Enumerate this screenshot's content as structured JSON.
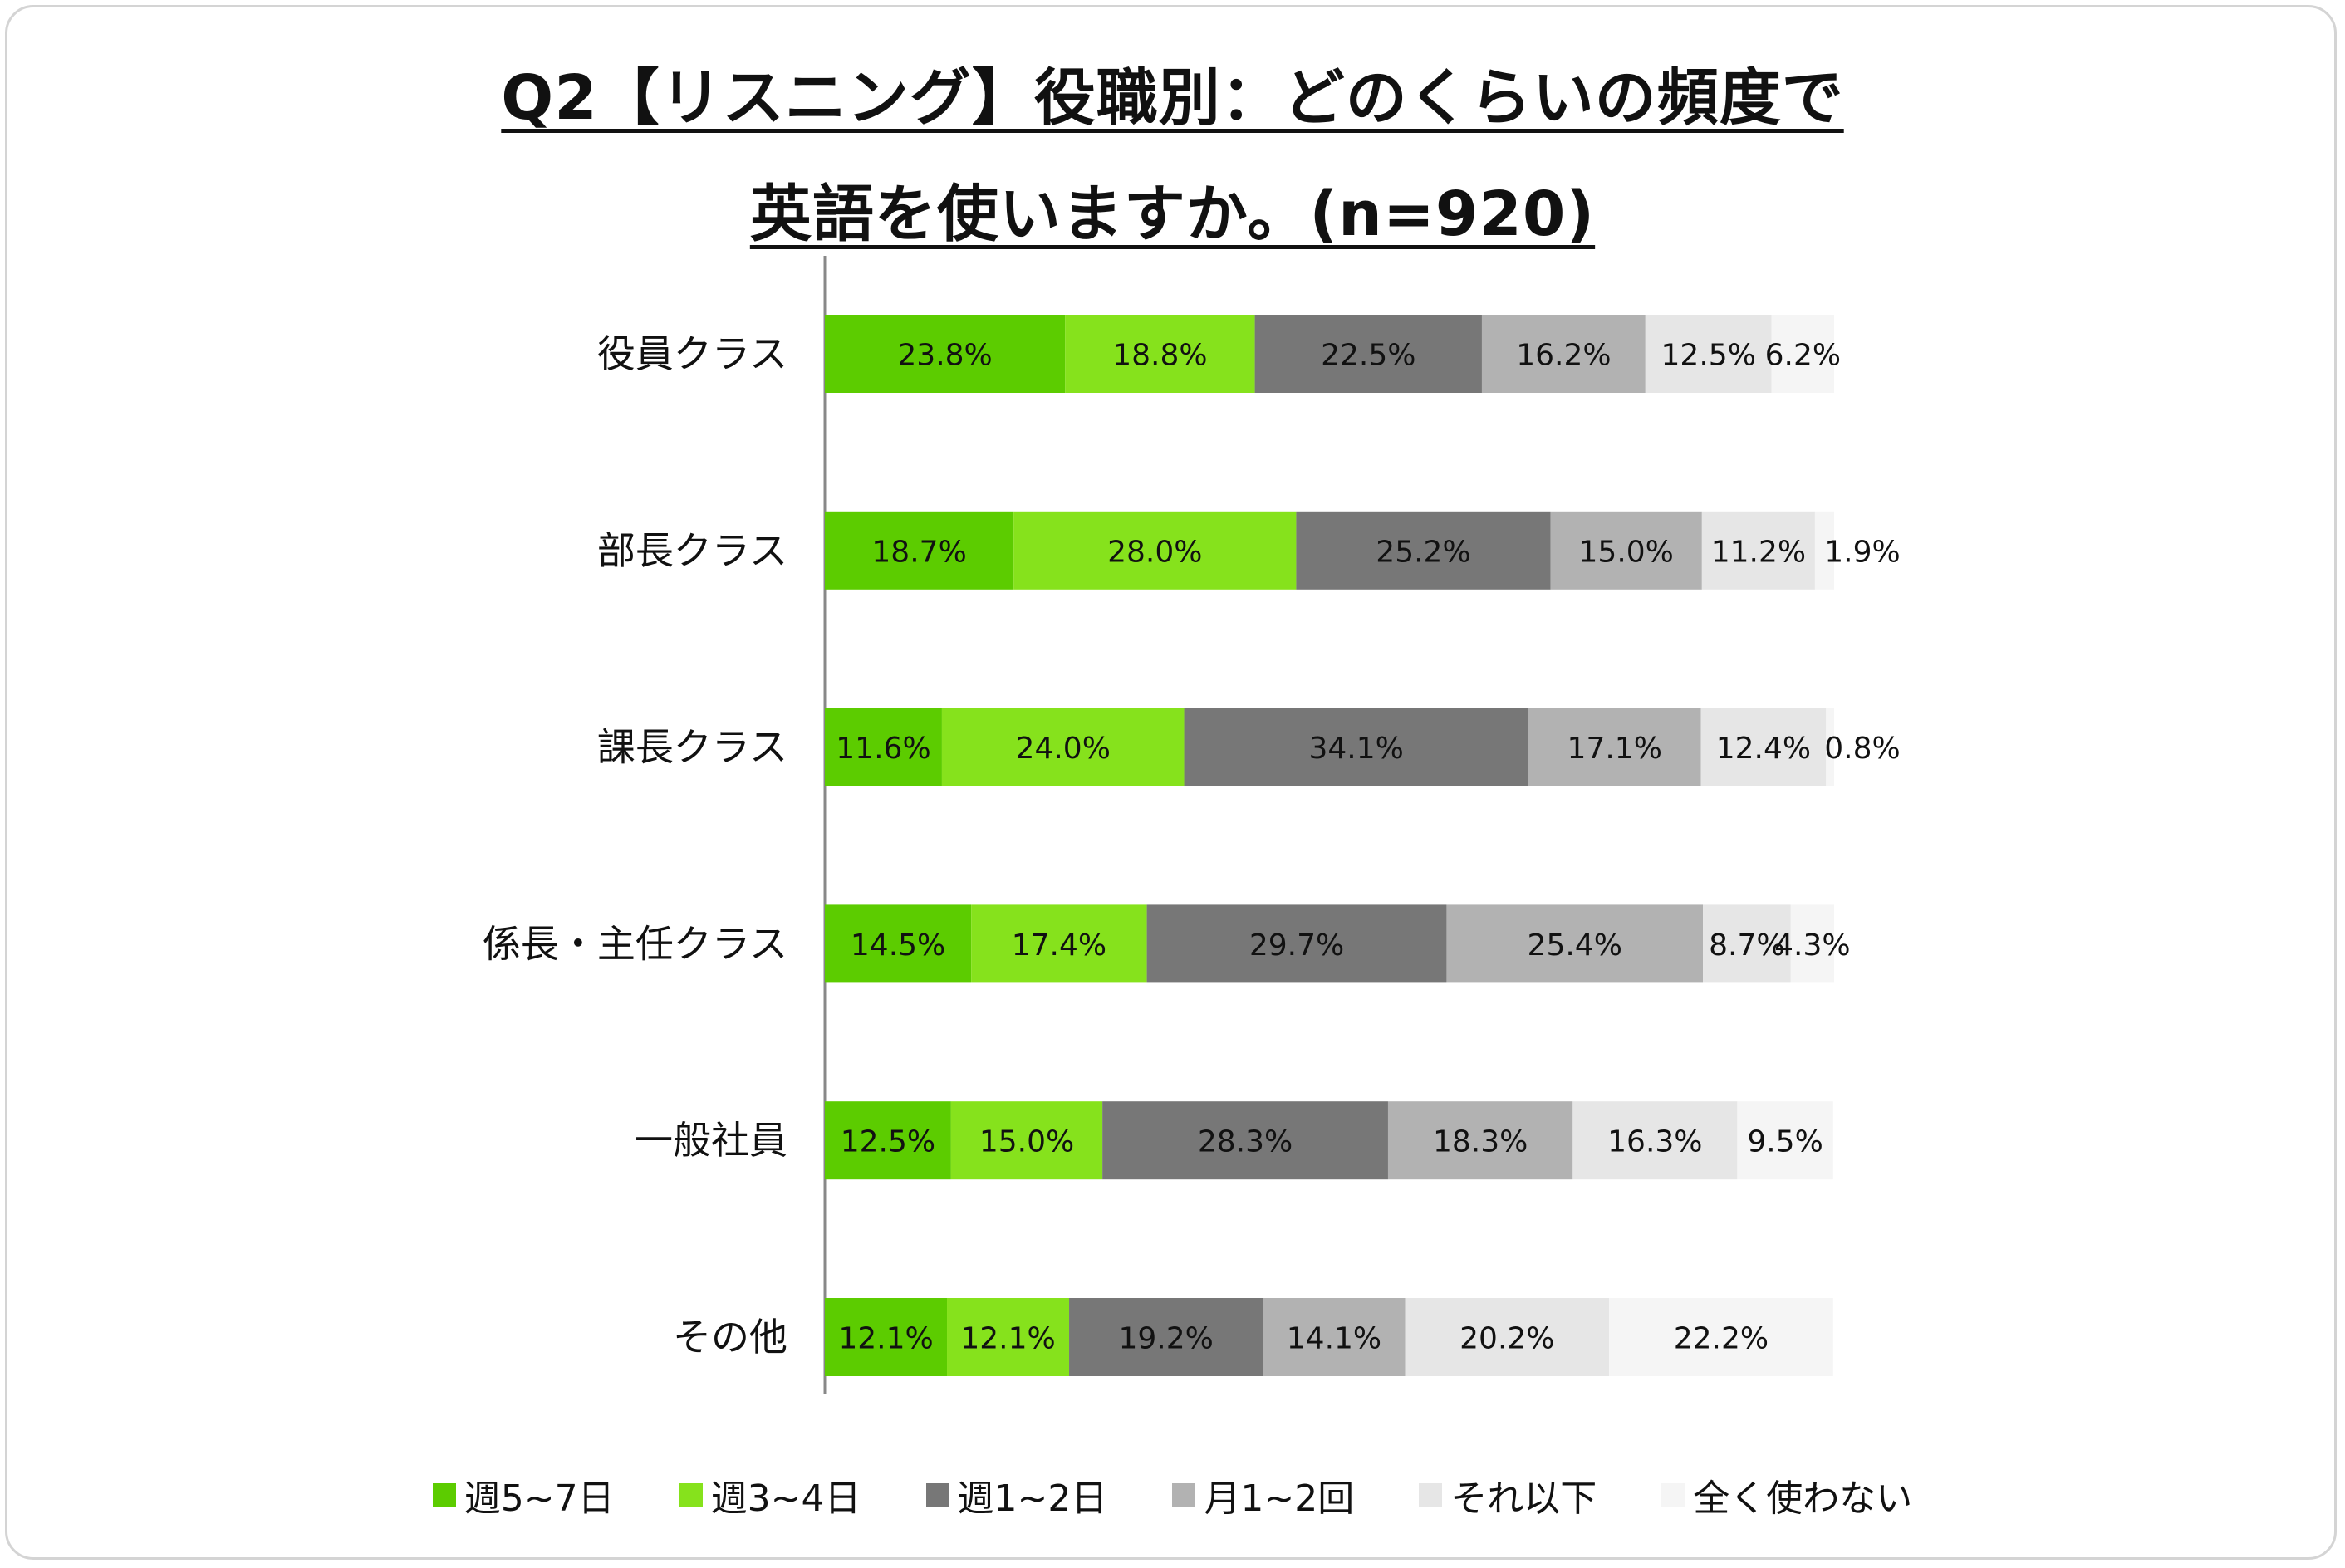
{
  "title": {
    "line1": "Q2【リスニング】役職別：どのくらいの頻度で",
    "line2": "英語を使いますか。(n=920)"
  },
  "colors": {
    "series": [
      "#5ccc00",
      "#86e21c",
      "#777777",
      "#b2b2b2",
      "#e6e6e6",
      "#f5f5f5"
    ],
    "axis": "#888888",
    "text": "#111111"
  },
  "chart_data": {
    "type": "bar",
    "orientation": "horizontal",
    "stacked": true,
    "title": "Q2【リスニング】役職別：どのくらいの頻度で英語を使いますか。(n=920)",
    "categories": [
      "役員クラス",
      "部長クラス",
      "課長クラス",
      "係長・主任クラス",
      "一般社員",
      "その他"
    ],
    "series": [
      {
        "name": "週5~7日",
        "values": [
          23.8,
          18.7,
          11.6,
          14.5,
          12.5,
          12.1
        ],
        "labels": [
          "23.8%",
          "18.7%",
          "11.6%",
          "14.5%",
          "12.5%",
          "12.1%"
        ]
      },
      {
        "name": "週3~4日",
        "values": [
          18.8,
          28.0,
          24.0,
          17.4,
          15.0,
          12.1
        ],
        "labels": [
          "18.8%",
          "28.0%",
          "24.0%",
          "17.4%",
          "15.0%",
          "12.1%"
        ]
      },
      {
        "name": "週1~2日",
        "values": [
          22.5,
          25.2,
          34.1,
          29.7,
          28.3,
          19.2
        ],
        "labels": [
          "22.5%",
          "25.2%",
          "34.1%",
          "29.7%",
          "28.3%",
          "19.2%"
        ]
      },
      {
        "name": "月1~2回",
        "values": [
          16.2,
          15.0,
          17.1,
          25.4,
          18.3,
          14.1
        ],
        "labels": [
          "16.2%",
          "15.0%",
          "17.1%",
          "25.4%",
          "18.3%",
          "14.1%"
        ]
      },
      {
        "name": "それ以下",
        "values": [
          12.5,
          11.2,
          12.4,
          8.7,
          16.3,
          20.2
        ],
        "labels": [
          "12.5%",
          "11.2%",
          "12.4%",
          "8.7%",
          "16.3%",
          "20.2%"
        ]
      },
      {
        "name": "全く使わない",
        "values": [
          6.2,
          1.9,
          0.8,
          4.3,
          9.5,
          22.2
        ],
        "labels": [
          "6.2%",
          "1.9%",
          "0.8%",
          "4.3%",
          "9.5%",
          "22.2%"
        ]
      }
    ],
    "xlim": [
      0,
      100
    ],
    "grid": false,
    "legend_position": "bottom"
  }
}
